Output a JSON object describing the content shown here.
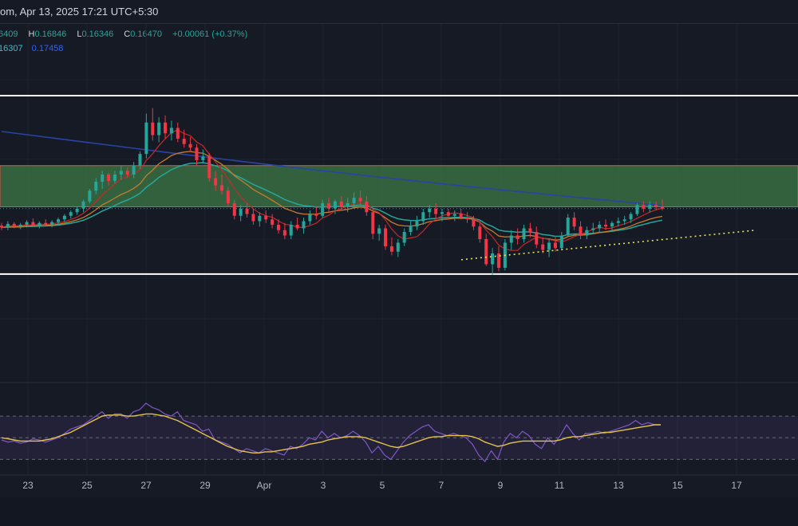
{
  "header": {
    "title": "om, Apr 13, 2025 17:21 UTC+5:30"
  },
  "legend": {
    "open": "6409",
    "high_label": "H",
    "high": "0.16846",
    "low_label": "L",
    "low": "0.16346",
    "close_label": "C",
    "close": "0.16470",
    "change": "+0.00061 (+0.37%)",
    "ma_values": [
      "16307",
      "0.17458"
    ]
  },
  "colors": {
    "background": "#161a25",
    "up": "#26a69a",
    "down": "#f23645",
    "zone_fill": "#3e7a46",
    "zone_border": "#d9534f",
    "ma_blue": "#2943a6",
    "ma_teal": "#26a69a",
    "ma_orange": "#c77b2a",
    "ma_red": "#c62828",
    "trendline": "#e6e65a",
    "rsi": "#7e57c2",
    "rsi_ma": "#e6c34a"
  },
  "chart_data": {
    "type": "candlestick",
    "x_axis_labels": [
      "23",
      "25",
      "27",
      "29",
      "Apr",
      "3",
      "5",
      "7",
      "9",
      "11",
      "13",
      "15",
      "17"
    ],
    "y_range": [
      0.148,
      0.188
    ],
    "horizontal_levels": [
      0.18,
      0.1601
    ],
    "zone": [
      0.1676,
      0.1722
    ],
    "trendline": {
      "from": [
        "Apr 7",
        0.1617
      ],
      "to": [
        "Apr 17",
        0.165
      ]
    },
    "candles": [
      [
        0.1655,
        0.1658,
        0.165,
        0.1653
      ],
      [
        0.1653,
        0.166,
        0.165,
        0.1657
      ],
      [
        0.1657,
        0.1659,
        0.1652,
        0.1654
      ],
      [
        0.1654,
        0.1658,
        0.1651,
        0.1656
      ],
      [
        0.1656,
        0.1661,
        0.1653,
        0.1659
      ],
      [
        0.1659,
        0.1663,
        0.1654,
        0.1655
      ],
      [
        0.1655,
        0.166,
        0.1652,
        0.1658
      ],
      [
        0.1658,
        0.1662,
        0.1655,
        0.1656
      ],
      [
        0.1656,
        0.1661,
        0.1653,
        0.1659
      ],
      [
        0.1659,
        0.1664,
        0.1656,
        0.1662
      ],
      [
        0.1662,
        0.1668,
        0.1659,
        0.1666
      ],
      [
        0.1666,
        0.1672,
        0.1663,
        0.167
      ],
      [
        0.167,
        0.1676,
        0.1667,
        0.1674
      ],
      [
        0.1674,
        0.1684,
        0.167,
        0.1682
      ],
      [
        0.1682,
        0.1696,
        0.168,
        0.1694
      ],
      [
        0.1694,
        0.1708,
        0.169,
        0.1704
      ],
      [
        0.1704,
        0.1716,
        0.1696,
        0.1712
      ],
      [
        0.1712,
        0.1714,
        0.17,
        0.1705
      ],
      [
        0.1705,
        0.1716,
        0.1702,
        0.1712
      ],
      [
        0.1712,
        0.1722,
        0.1706,
        0.1716
      ],
      [
        0.1716,
        0.172,
        0.1708,
        0.1712
      ],
      [
        0.1712,
        0.1726,
        0.1708,
        0.1722
      ],
      [
        0.1722,
        0.1738,
        0.1718,
        0.1735
      ],
      [
        0.1735,
        0.178,
        0.173,
        0.177
      ],
      [
        0.177,
        0.1786,
        0.175,
        0.1756
      ],
      [
        0.1756,
        0.1776,
        0.1748,
        0.177
      ],
      [
        0.177,
        0.1778,
        0.1752,
        0.1758
      ],
      [
        0.1758,
        0.1772,
        0.175,
        0.1764
      ],
      [
        0.1764,
        0.177,
        0.1748,
        0.1752
      ],
      [
        0.1752,
        0.1762,
        0.1742,
        0.1746
      ],
      [
        0.1746,
        0.1754,
        0.1738,
        0.1742
      ],
      [
        0.1742,
        0.1746,
        0.1722,
        0.1728
      ],
      [
        0.1728,
        0.174,
        0.1724,
        0.1732
      ],
      [
        0.1732,
        0.1736,
        0.1704,
        0.1708
      ],
      [
        0.1708,
        0.1716,
        0.1694,
        0.17
      ],
      [
        0.17,
        0.1712,
        0.169,
        0.1694
      ],
      [
        0.1694,
        0.1698,
        0.1676,
        0.168
      ],
      [
        0.168,
        0.1684,
        0.1662,
        0.1666
      ],
      [
        0.1666,
        0.1678,
        0.166,
        0.1674
      ],
      [
        0.1674,
        0.168,
        0.1664,
        0.1668
      ],
      [
        0.1668,
        0.1674,
        0.1656,
        0.166
      ],
      [
        0.166,
        0.167,
        0.1654,
        0.1666
      ],
      [
        0.1666,
        0.1672,
        0.1658,
        0.1662
      ],
      [
        0.1662,
        0.1668,
        0.1652,
        0.1656
      ],
      [
        0.1656,
        0.1662,
        0.1646,
        0.165
      ],
      [
        0.165,
        0.1658,
        0.164,
        0.1644
      ],
      [
        0.1644,
        0.166,
        0.164,
        0.1656
      ],
      [
        0.1656,
        0.1664,
        0.165,
        0.1652
      ],
      [
        0.1652,
        0.1664,
        0.1646,
        0.166
      ],
      [
        0.166,
        0.1672,
        0.1656,
        0.1668
      ],
      [
        0.1668,
        0.1676,
        0.1662,
        0.1666
      ],
      [
        0.1666,
        0.1684,
        0.1664,
        0.168
      ],
      [
        0.168,
        0.1686,
        0.167,
        0.1674
      ],
      [
        0.1674,
        0.1684,
        0.1668,
        0.1682
      ],
      [
        0.1682,
        0.1688,
        0.1672,
        0.1676
      ],
      [
        0.1676,
        0.1686,
        0.167,
        0.168
      ],
      [
        0.168,
        0.1692,
        0.1674,
        0.1686
      ],
      [
        0.1686,
        0.1694,
        0.1676,
        0.1682
      ],
      [
        0.1682,
        0.1688,
        0.1666,
        0.167
      ],
      [
        0.167,
        0.1674,
        0.164,
        0.1646
      ],
      [
        0.1646,
        0.1656,
        0.1638,
        0.1652
      ],
      [
        0.1652,
        0.1656,
        0.1628,
        0.1632
      ],
      [
        0.1632,
        0.1642,
        0.1622,
        0.1626
      ],
      [
        0.1626,
        0.164,
        0.162,
        0.1636
      ],
      [
        0.1636,
        0.1652,
        0.1632,
        0.1648
      ],
      [
        0.1648,
        0.166,
        0.1644,
        0.1654
      ],
      [
        0.1654,
        0.1666,
        0.165,
        0.166
      ],
      [
        0.166,
        0.1674,
        0.1656,
        0.167
      ],
      [
        0.167,
        0.1678,
        0.1664,
        0.1674
      ],
      [
        0.1674,
        0.168,
        0.1664,
        0.1668
      ],
      [
        0.1668,
        0.1674,
        0.166,
        0.167
      ],
      [
        0.167,
        0.1674,
        0.1662,
        0.1666
      ],
      [
        0.1666,
        0.1672,
        0.166,
        0.1668
      ],
      [
        0.1668,
        0.1674,
        0.1662,
        0.1664
      ],
      [
        0.1664,
        0.167,
        0.1658,
        0.1662
      ],
      [
        0.1662,
        0.1666,
        0.165,
        0.1654
      ],
      [
        0.1654,
        0.166,
        0.1636,
        0.164
      ],
      [
        0.164,
        0.1646,
        0.161,
        0.1612
      ],
      [
        0.1612,
        0.163,
        0.16,
        0.1624
      ],
      [
        0.1624,
        0.1632,
        0.1604,
        0.1608
      ],
      [
        0.1608,
        0.164,
        0.1605,
        0.1636
      ],
      [
        0.1636,
        0.165,
        0.1628,
        0.1644
      ],
      [
        0.1644,
        0.1652,
        0.1634,
        0.164
      ],
      [
        0.164,
        0.1656,
        0.1636,
        0.1652
      ],
      [
        0.1652,
        0.1658,
        0.1642,
        0.1648
      ],
      [
        0.1648,
        0.1654,
        0.163,
        0.1634
      ],
      [
        0.1634,
        0.1642,
        0.1624,
        0.1628
      ],
      [
        0.1628,
        0.164,
        0.162,
        0.1636
      ],
      [
        0.1636,
        0.1642,
        0.1626,
        0.163
      ],
      [
        0.163,
        0.1648,
        0.1628,
        0.1644
      ],
      [
        0.1644,
        0.1668,
        0.1642,
        0.1664
      ],
      [
        0.1664,
        0.167,
        0.165,
        0.1654
      ],
      [
        0.1654,
        0.166,
        0.164,
        0.1644
      ],
      [
        0.1644,
        0.1654,
        0.164,
        0.165
      ],
      [
        0.165,
        0.1658,
        0.1646,
        0.1652
      ],
      [
        0.1652,
        0.166,
        0.1648,
        0.1656
      ],
      [
        0.1656,
        0.1662,
        0.165,
        0.1654
      ],
      [
        0.1654,
        0.166,
        0.165,
        0.1658
      ],
      [
        0.1658,
        0.1664,
        0.1654,
        0.166
      ],
      [
        0.166,
        0.1666,
        0.1656,
        0.1662
      ],
      [
        0.1662,
        0.167,
        0.1658,
        0.1668
      ],
      [
        0.1668,
        0.168,
        0.1666,
        0.1678
      ],
      [
        0.1678,
        0.1682,
        0.167,
        0.1674
      ],
      [
        0.1674,
        0.1682,
        0.167,
        0.1678
      ],
      [
        0.1678,
        0.1682,
        0.1672,
        0.1676
      ],
      [
        0.1676,
        0.1684,
        0.1672,
        0.1674
      ]
    ],
    "moving_averages": [
      {
        "name": "MA blue",
        "color": "#2943a6",
        "values": [
          0.1757,
          0.172,
          0.1701,
          0.1678
        ]
      },
      {
        "name": "MA teal",
        "color": "#26a69a",
        "values": [
          0.1662,
          0.1705,
          0.1683,
          0.1655,
          0.1676
        ]
      }
    ],
    "rsi": {
      "band_upper": 70,
      "band_lower": 30,
      "mid": 50,
      "values": [
        48,
        46,
        47,
        45,
        46,
        49,
        48,
        46,
        48,
        50,
        54,
        58,
        60,
        62,
        66,
        70,
        74,
        68,
        72,
        72,
        68,
        74,
        76,
        82,
        78,
        76,
        72,
        70,
        74,
        66,
        64,
        62,
        56,
        58,
        48,
        46,
        44,
        40,
        36,
        40,
        38,
        36,
        40,
        38,
        36,
        34,
        42,
        40,
        44,
        50,
        48,
        56,
        50,
        54,
        50,
        52,
        56,
        52,
        46,
        36,
        42,
        34,
        30,
        38,
        46,
        52,
        56,
        60,
        62,
        56,
        54,
        52,
        54,
        52,
        50,
        44,
        34,
        28,
        38,
        30,
        46,
        54,
        50,
        56,
        52,
        44,
        40,
        50,
        44,
        52,
        62,
        54,
        48,
        54,
        54,
        56,
        54,
        56,
        58,
        60,
        62,
        66,
        62,
        64,
        62,
        62
      ],
      "ma": [
        50,
        49,
        48,
        47,
        47,
        47,
        47,
        48,
        49,
        51,
        53,
        55,
        58,
        61,
        64,
        67,
        70,
        71,
        71,
        71,
        70,
        70,
        71,
        72,
        72,
        71,
        70,
        68,
        66,
        63,
        60,
        57,
        54,
        51,
        48,
        45,
        42,
        40,
        38,
        37,
        36,
        36,
        37,
        37,
        38,
        39,
        40,
        41,
        42,
        44,
        45,
        46,
        48,
        49,
        50,
        51,
        51,
        51,
        50,
        48,
        46,
        44,
        42,
        41,
        42,
        44,
        46,
        48,
        50,
        51,
        51,
        52,
        52,
        52,
        52,
        51,
        49,
        46,
        44,
        42,
        43,
        45,
        46,
        47,
        47,
        47,
        47,
        47,
        47,
        48,
        50,
        51,
        51,
        52,
        53,
        54,
        55,
        55,
        56,
        57,
        58,
        59,
        60,
        61,
        62,
        62
      ]
    }
  }
}
